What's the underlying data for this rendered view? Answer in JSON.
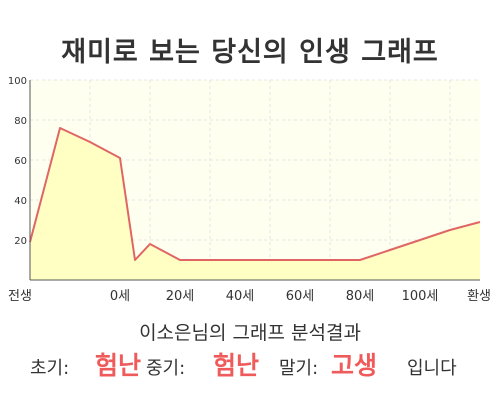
{
  "title": "재미로 보는 당신의 인생 그래프",
  "subtitle": "이소은님의 그래프 분석결과",
  "result": {
    "early_label": "초기:",
    "early_value": "험난",
    "mid_label": "중기:",
    "mid_value": "험난",
    "late_label": "말기:",
    "late_value": "고생",
    "ending": "입니다"
  },
  "colors": {
    "line": "#e06666",
    "fill": "#ffffc4",
    "plot_bg": "#fffff0",
    "grid": "#e6e6e6",
    "highlight": "#ef5b5b"
  },
  "chart_data": {
    "type": "area",
    "categories": [
      "전생",
      "0세",
      "20세",
      "40세",
      "60세",
      "80세",
      "100세",
      "환생"
    ],
    "x": [
      -0.5,
      0,
      0.5,
      1.0,
      1.25,
      1.5,
      2.0,
      2.5,
      3.0,
      3.5,
      4.0,
      4.5,
      5.0,
      5.5,
      6.0,
      6.5,
      7.0
    ],
    "values": [
      19,
      76,
      69,
      61,
      10,
      18,
      10,
      10,
      10,
      10,
      10,
      10,
      10,
      15,
      20,
      25,
      29
    ],
    "ylim": [
      0,
      100
    ],
    "yticks": [
      20,
      40,
      60,
      80,
      100
    ],
    "grid": true,
    "legend": "none"
  }
}
